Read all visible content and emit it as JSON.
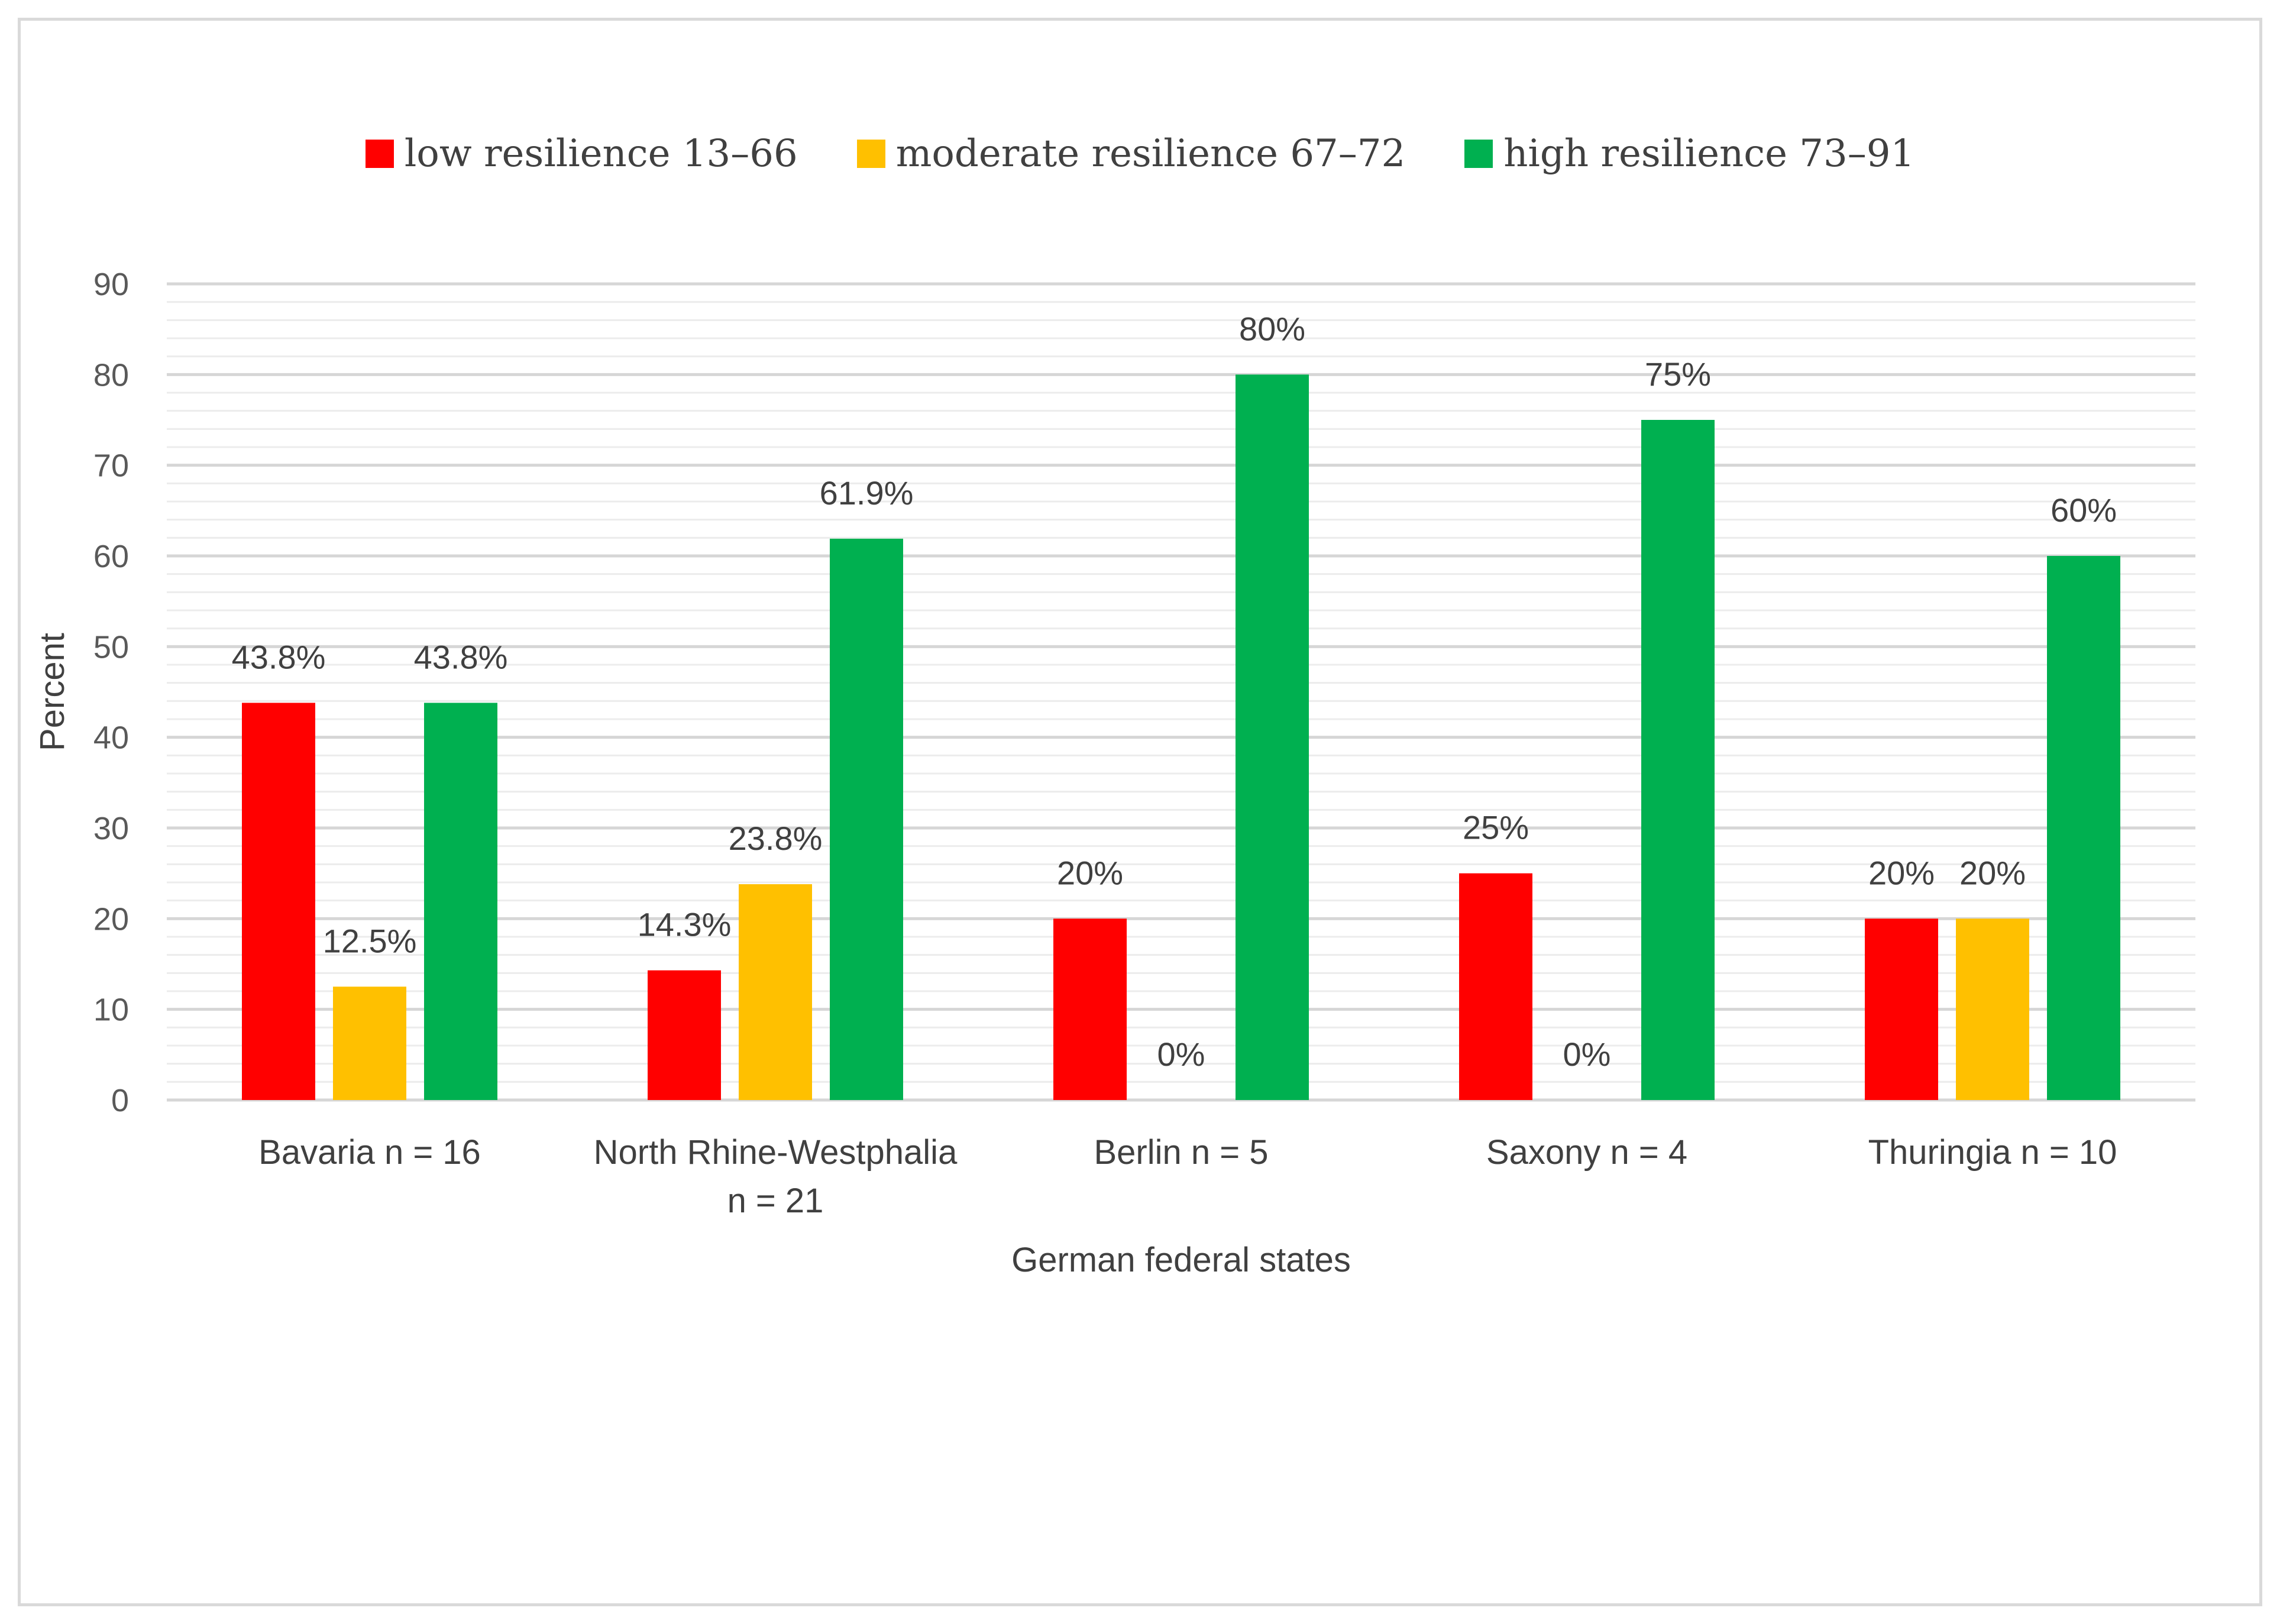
{
  "chart_data": {
    "type": "bar",
    "title": "",
    "xlabel": "German federal states",
    "ylabel": "Percent",
    "ylim": [
      0,
      90
    ],
    "major_ticks": [
      0,
      10,
      20,
      30,
      40,
      50,
      60,
      70,
      80,
      90
    ],
    "minor_tick_step": 2,
    "grid": true,
    "legend_position": "top-center",
    "categories": [
      [
        "Bavaria n = 16"
      ],
      [
        "North Rhine-Westphalia",
        "n = 21"
      ],
      [
        "Berlin n = 5"
      ],
      [
        "Saxony n = 4"
      ],
      [
        "Thuringia n = 10"
      ]
    ],
    "series": [
      {
        "name": "low resilience 13–66",
        "color": "#ff0000",
        "values": [
          43.8,
          14.3,
          20,
          25,
          20
        ],
        "labels": [
          "43.8%",
          "14.3%",
          "20%",
          "25%",
          "20%"
        ]
      },
      {
        "name": "moderate resilience 67–72",
        "color": "#ffc000",
        "values": [
          12.5,
          23.8,
          0,
          0,
          20
        ],
        "labels": [
          "12.5%",
          "23.8%",
          "0%",
          "0%",
          "20%"
        ]
      },
      {
        "name": "high resilience 73–91",
        "color": "#00b050",
        "values": [
          43.8,
          61.9,
          80,
          75,
          60
        ],
        "labels": [
          "43.8%",
          "61.9%",
          "80%",
          "75%",
          "60%"
        ]
      }
    ]
  }
}
